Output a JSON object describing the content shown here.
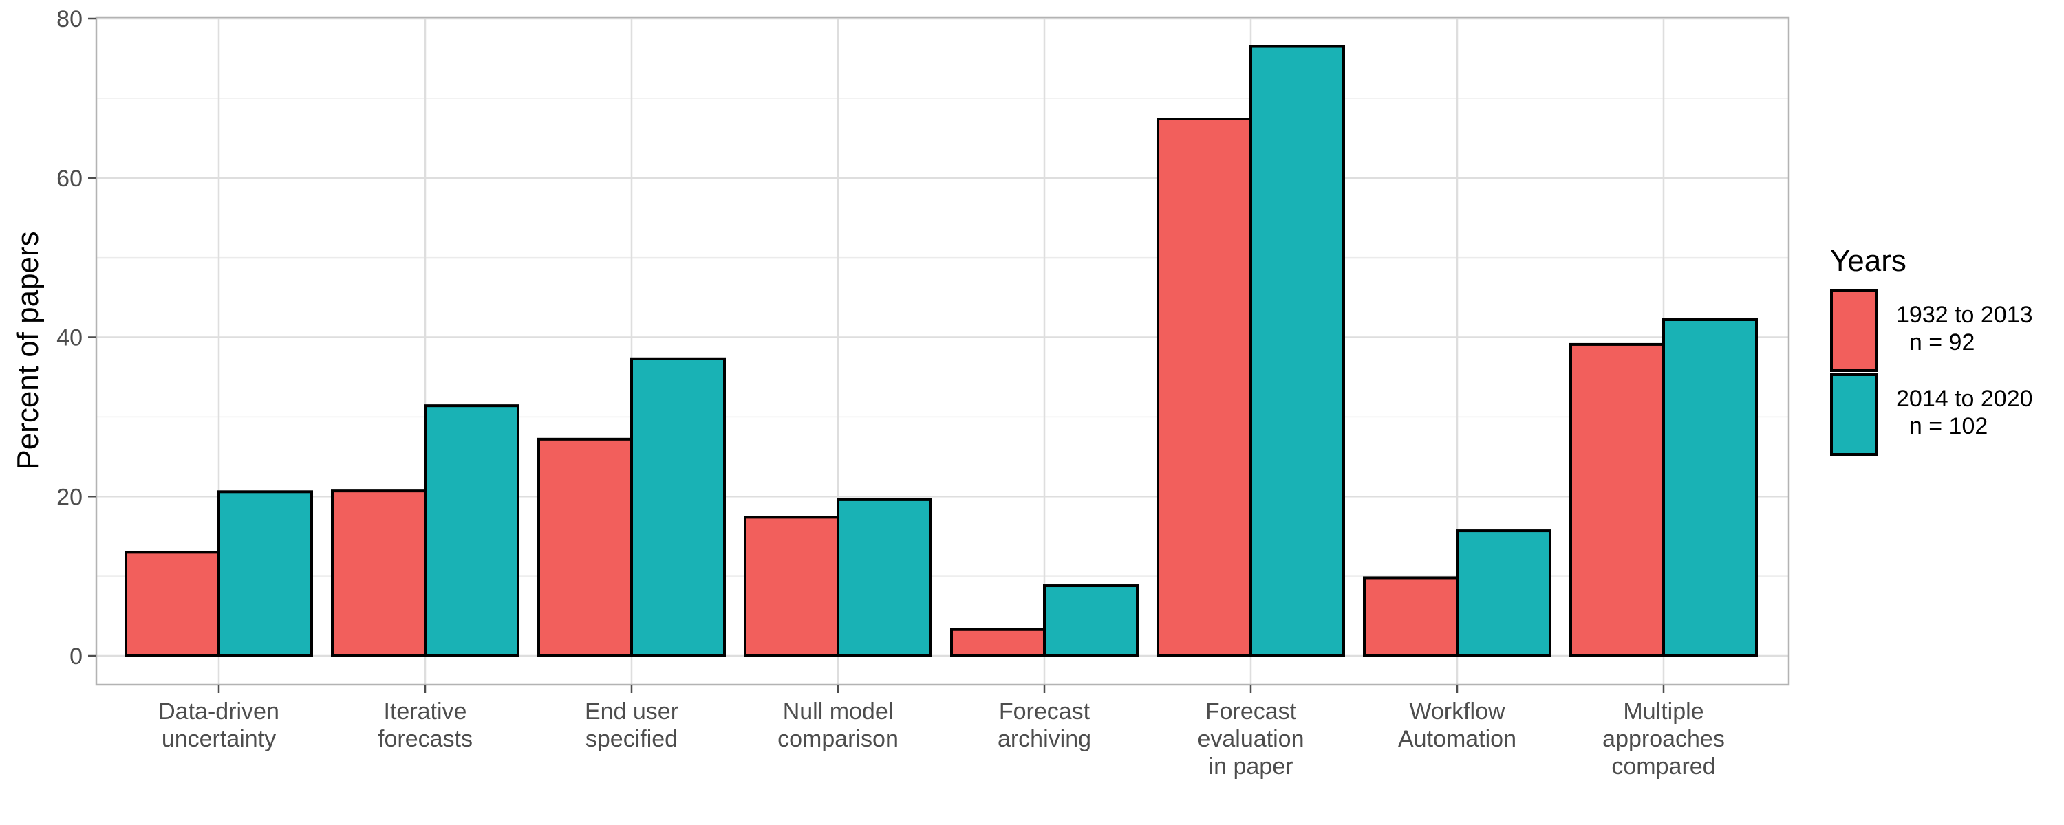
{
  "chart_data": {
    "type": "bar",
    "title": "",
    "xlabel": "",
    "ylabel": "Percent of papers",
    "ylim": [
      0,
      80
    ],
    "yticks": [
      0,
      20,
      40,
      60,
      80
    ],
    "grid": true,
    "legend_position": "right",
    "legend_title": "Years",
    "categories": [
      [
        "Data-driven",
        "uncertainty"
      ],
      [
        "Iterative",
        "forecasts"
      ],
      [
        "End user",
        "specified"
      ],
      [
        "Null model",
        "comparison"
      ],
      [
        "Forecast",
        "archiving"
      ],
      [
        "Forecast",
        "evaluation",
        "in paper"
      ],
      [
        "Workflow",
        "Automation"
      ],
      [
        "Multiple",
        "approaches",
        "compared"
      ]
    ],
    "series": [
      {
        "name": [
          "1932 to 2013",
          "  n = 92"
        ],
        "color": "#F25F5C",
        "values": [
          13.0,
          20.7,
          27.2,
          17.4,
          3.3,
          67.4,
          9.8,
          39.1
        ]
      },
      {
        "name": [
          "2014 to 2020",
          "  n = 102"
        ],
        "color": "#19B2B5",
        "values": [
          20.6,
          31.4,
          37.3,
          19.6,
          8.8,
          76.5,
          15.7,
          42.2
        ]
      }
    ]
  }
}
